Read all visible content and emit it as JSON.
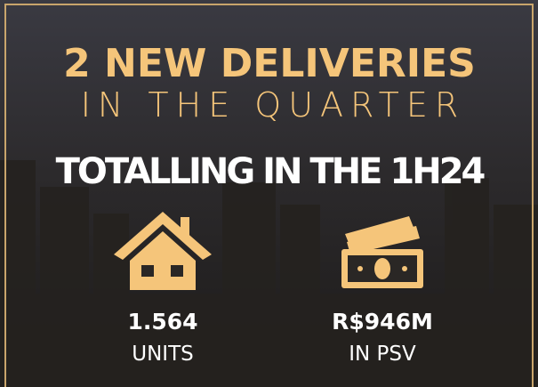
{
  "header": {
    "title_line1": "2 NEW DELIVERIES",
    "title_line2": "IN THE QUARTER",
    "subtitle": "TOTALLING IN THE 1H24"
  },
  "stats": [
    {
      "value": "1.564",
      "label": "UNITS"
    },
    {
      "value": "R$946M",
      "label": "IN PSV"
    }
  ]
}
